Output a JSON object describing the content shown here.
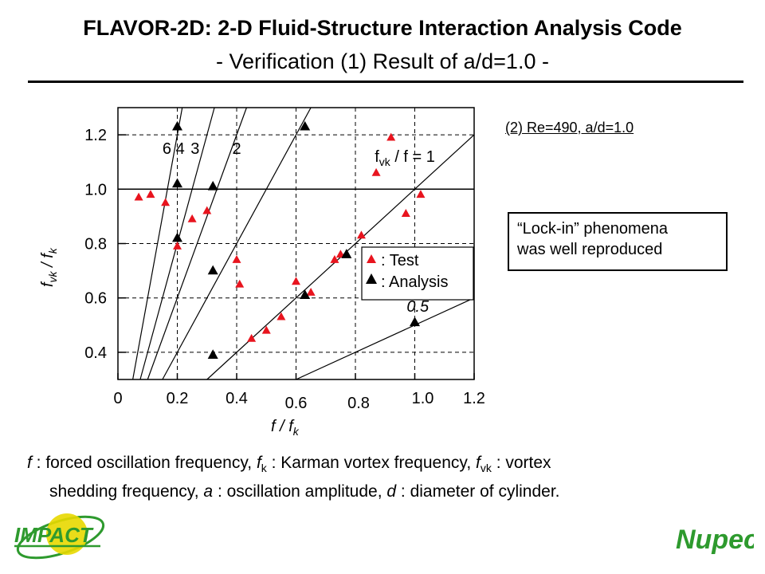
{
  "header": {
    "title": "FLAVOR-2D: 2-D Fluid-Structure Interaction Analysis Code",
    "subtitle": "- Verification (1) Result of a/d=1.0 -"
  },
  "case_label": "(2) Re=490, a/d=1.0",
  "note": {
    "line1": "“Lock-in” phenomena",
    "line2": "was well reproduced"
  },
  "caption": {
    "line1": "f : forced oscillation frequency,  fk : Karman vortex frequency, fvk : vortex",
    "line2": "shedding frequency,     a : oscillation amplitude,    d : diameter of cylinder."
  },
  "logos": {
    "left": "IMPACT",
    "right": "Nupec"
  },
  "colors": {
    "test": "#e8141e",
    "analysis": "#000000",
    "logo_green": "#2e9a2e",
    "logo_yellow": "#e8d800"
  },
  "chart_data": {
    "type": "scatter",
    "xlabel": "f / fk",
    "ylabel": "fvk / fk",
    "xlim": [
      0,
      1.2
    ],
    "ylim": [
      0.3,
      1.3
    ],
    "x_ticks": [
      "0",
      "0.2",
      "0.4",
      "0.6",
      "0.8",
      "1.0",
      "1.2"
    ],
    "y_ticks": [
      "0.4",
      "0.6",
      "0.8",
      "1.0",
      "1.2"
    ],
    "grid": "dashed",
    "reference_lines": [
      {
        "label": "6",
        "slope": 6
      },
      {
        "label": "4",
        "slope": 4
      },
      {
        "label": "3",
        "slope": 3
      },
      {
        "label": "2",
        "slope": 2
      },
      {
        "label": "fvk / f = 1",
        "slope": 1
      },
      {
        "label": "0.5",
        "slope": 0.5
      }
    ],
    "horizontal_line": 1.0,
    "legend": {
      "test": ": Test",
      "analysis": ": Analysis"
    },
    "series": [
      {
        "name": ": Test",
        "marker": "triangle",
        "points": [
          [
            0.07,
            0.97
          ],
          [
            0.11,
            0.98
          ],
          [
            0.16,
            0.95
          ],
          [
            0.2,
            0.79
          ],
          [
            0.25,
            0.89
          ],
          [
            0.3,
            0.92
          ],
          [
            0.4,
            0.74
          ],
          [
            0.41,
            0.65
          ],
          [
            0.45,
            0.45
          ],
          [
            0.5,
            0.48
          ],
          [
            0.55,
            0.53
          ],
          [
            0.6,
            0.66
          ],
          [
            0.65,
            0.62
          ],
          [
            0.73,
            0.74
          ],
          [
            0.75,
            0.76
          ],
          [
            0.82,
            0.83
          ],
          [
            0.87,
            1.06
          ],
          [
            0.92,
            1.19
          ],
          [
            0.97,
            0.91
          ],
          [
            1.02,
            0.98
          ]
        ]
      },
      {
        "name": ": Analysis",
        "marker": "triangle",
        "points": [
          [
            0.2,
            1.23
          ],
          [
            0.2,
            1.02
          ],
          [
            0.2,
            0.82
          ],
          [
            0.32,
            1.01
          ],
          [
            0.32,
            0.7
          ],
          [
            0.32,
            0.39
          ],
          [
            0.63,
            1.23
          ],
          [
            0.63,
            0.61
          ],
          [
            0.77,
            0.76
          ],
          [
            1.0,
            0.51
          ]
        ]
      }
    ]
  }
}
